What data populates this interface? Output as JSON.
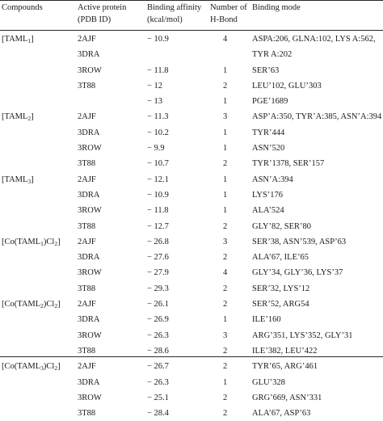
{
  "headers": {
    "compounds": "Compounds",
    "protein_line1": "Active protein",
    "protein_line2": "(PDB ID)",
    "affinity_line1": "Binding affinity",
    "affinity_line2": "(kcal/mol)",
    "hbond_line1": "Number of",
    "hbond_line2": "H-Bond",
    "mode": "Binding mode"
  },
  "rows": [
    {
      "compound": "[TAML1]",
      "protein": "2AJF",
      "affinity": "− 10.9",
      "hbond": "4",
      "mode": "ASPA:206, GLNA:102, LYS A:562,"
    },
    {
      "compound": "",
      "protein": "3DRA",
      "affinity": "",
      "hbond": "",
      "mode": "TYR A:202"
    },
    {
      "compound": "",
      "protein": "3ROW",
      "affinity": "− 11.8",
      "hbond": "1",
      "mode": "SER’63"
    },
    {
      "compound": "",
      "protein": "3T88",
      "affinity": "− 12",
      "hbond": "2",
      "mode": "LEU’102, GLU’303"
    },
    {
      "compound": "",
      "protein": "",
      "affinity": "− 13",
      "hbond": "1",
      "mode": "PGE’1689"
    },
    {
      "compound": "[TAML2]",
      "protein": "2AJF",
      "affinity": "− 11.3",
      "hbond": "3",
      "mode": "ASP’A:350, TYR’A:385, ASN’A:394"
    },
    {
      "compound": "",
      "protein": "3DRA",
      "affinity": "− 10.2",
      "hbond": "1",
      "mode": "TYR’444"
    },
    {
      "compound": "",
      "protein": "3ROW",
      "affinity": "− 9.9",
      "hbond": "1",
      "mode": "ASN’520"
    },
    {
      "compound": "",
      "protein": "3T88",
      "affinity": "− 10.7",
      "hbond": "2",
      "mode": "TYR’1378, SER’157"
    },
    {
      "compound": "[TAML3]",
      "protein": "2AJF",
      "affinity": "− 12.1",
      "hbond": "1",
      "mode": "ASN’A:394"
    },
    {
      "compound": "",
      "protein": "3DRA",
      "affinity": "− 10.9",
      "hbond": "1",
      "mode": "LYS’176"
    },
    {
      "compound": "",
      "protein": "3ROW",
      "affinity": "− 11.8",
      "hbond": "1",
      "mode": "ALA’524"
    },
    {
      "compound": "",
      "protein": "3T88",
      "affinity": "− 12.7",
      "hbond": "2",
      "mode": "GLY’82, SER’80"
    },
    {
      "compound": "[Co(TAML1)Cl2]",
      "protein": "2AJF",
      "affinity": "− 26.8",
      "hbond": "3",
      "mode": "SER’38, ASN’539, ASP’63"
    },
    {
      "compound": "",
      "protein": "3DRA",
      "affinity": "− 27.6",
      "hbond": "2",
      "mode": "ALA’67, ILE’65"
    },
    {
      "compound": "",
      "protein": "3ROW",
      "affinity": "− 27.9",
      "hbond": "4",
      "mode": "GLY’34, GLY’36, LYS’37"
    },
    {
      "compound": "",
      "protein": "3T88",
      "affinity": "− 29.3",
      "hbond": "2",
      "mode": "SER’32, LYS’12"
    },
    {
      "compound": "[Co(TAML2)Cl2]",
      "protein": "2AJF",
      "affinity": "− 26.1",
      "hbond": "2",
      "mode": "SER’52, ARG54"
    },
    {
      "compound": "",
      "protein": "3DRA",
      "affinity": "− 26.9",
      "hbond": "1",
      "mode": "ILE’160"
    },
    {
      "compound": "",
      "protein": "3ROW",
      "affinity": "− 26.3",
      "hbond": "3",
      "mode": "ARG’351, LYS’352, GLY’31"
    },
    {
      "compound": "",
      "protein": "3T88",
      "affinity": "− 28.6",
      "hbond": "2",
      "mode": "ILE’382, LEU’422"
    },
    {
      "compound": "[Co(TAML3)Cl2]",
      "protein": "2AJF",
      "affinity": "− 26.7",
      "hbond": "2",
      "mode": "TYR’65, ARG’461"
    },
    {
      "compound": "",
      "protein": "3DRA",
      "affinity": "− 26.3",
      "hbond": "1",
      "mode": "GLU’328"
    },
    {
      "compound": "",
      "protein": "3ROW",
      "affinity": "− 25.1",
      "hbond": "2",
      "mode": "GRG’669, ASN’331"
    },
    {
      "compound": "",
      "protein": "3T88",
      "affinity": "− 28.4",
      "hbond": "2",
      "mode": "ALA’67, ASP’63"
    }
  ]
}
